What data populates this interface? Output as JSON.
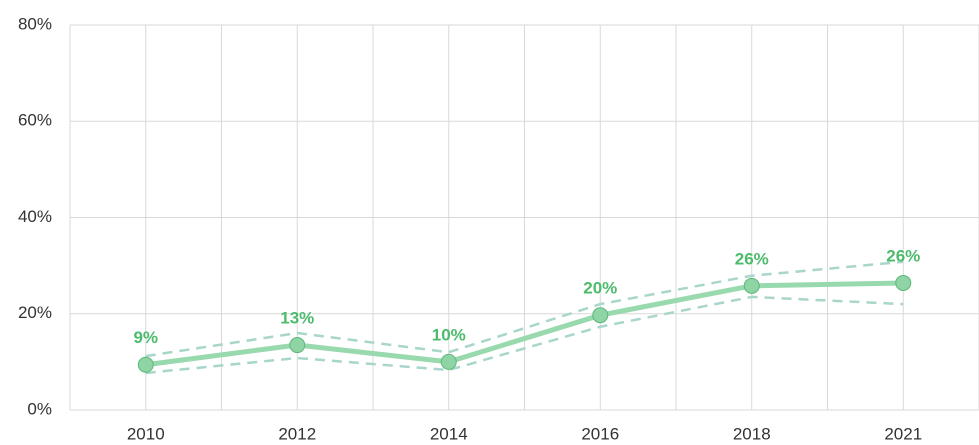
{
  "chart_data": {
    "type": "line",
    "categories": [
      "2010",
      "2012",
      "2014",
      "2016",
      "2018",
      "2021"
    ],
    "series": [
      {
        "color": "#99d9ae",
        "values": [
          9.4,
          13.5,
          10.0,
          19.7,
          25.8,
          26.4
        ],
        "value_labels": [
          "9%",
          "13%",
          "10%",
          "20%",
          "26%",
          "26%"
        ],
        "label_color": "#4cbb6c",
        "marker_color": "#8fd4a4",
        "marker_edge": "#5cb87a"
      },
      {
        "color": "#a9d6cb",
        "dashed": true,
        "values": [
          11.2,
          16.0,
          12.0,
          22.0,
          27.9,
          30.8
        ]
      },
      {
        "color": "#a9d6cb",
        "dashed": true,
        "values": [
          7.7,
          10.8,
          8.3,
          17.3,
          23.5,
          22.0
        ]
      }
    ],
    "ylim": [
      0,
      80
    ],
    "yticks": [
      {
        "value": 0,
        "label": "0%"
      },
      {
        "value": 20,
        "label": "20%"
      },
      {
        "value": 40,
        "label": "40%"
      },
      {
        "value": 60,
        "label": "60%"
      },
      {
        "value": 80,
        "label": "80%"
      }
    ],
    "grid": true
  }
}
